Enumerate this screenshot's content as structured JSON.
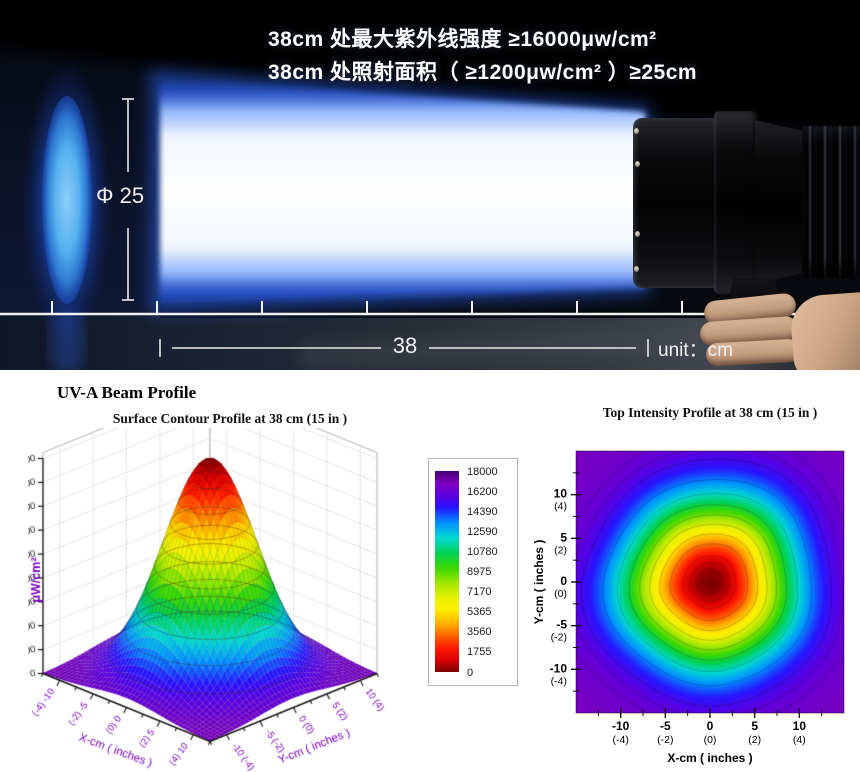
{
  "photo": {
    "spec_line1": "38cm 处最大紫外线强度 ≥16000μw/cm²",
    "spec_line2": "38cm 处照射面积（ ≥1200μw/cm² ）≥25cm",
    "diameter_label": "Φ 25",
    "distance_label": "38",
    "unit_label": "unit：cm",
    "colors": {
      "beam_core": "#ffffff",
      "beam_fringe": "#2a5fe0",
      "spot_blue": "#56b0ef"
    }
  },
  "section_title": "UV-A Beam Profile",
  "chart_data": [
    {
      "type": "surface_3d",
      "title": "Surface Contour Profile at 38 cm (15 in )",
      "zlabel": "μW/cm²",
      "xlabel": "X-cm ( inches )",
      "ylabel": "Y-cm ( inches )",
      "zlim": [
        0,
        18000
      ],
      "z_ticks": [
        0,
        2000,
        4000,
        6000,
        8000,
        10000,
        12000,
        14000,
        16000,
        18000
      ],
      "x_tick_cm": [
        -10,
        -5,
        0,
        5,
        10
      ],
      "y_tick_cm": [
        -10,
        -5,
        0,
        5,
        10
      ],
      "x_tick_labels": [
        "(-4) -10",
        "(-2) -5",
        "(0) 0",
        "(2) 5",
        "(4) 10"
      ],
      "y_tick_labels": [
        "-10 (-4)",
        "-5 (-2)",
        "0 (0)",
        "5 (2)",
        "10 (4)"
      ],
      "range_cm": [
        -12.5,
        12.5
      ],
      "model": {
        "shape": "gaussian",
        "peak_uw_cm2": 18000,
        "sigma_cm": 5.0
      },
      "colorbar_levels": [
        18000,
        16200,
        14390,
        12590,
        10780,
        8975,
        7170,
        5365,
        3560,
        1755,
        0
      ],
      "colorbar_top_color": "#470070",
      "colormap": [
        {
          "t": 0.0,
          "c": "#7a00be"
        },
        {
          "t": 0.07,
          "c": "#5a00e0"
        },
        {
          "t": 0.13,
          "c": "#2814ff"
        },
        {
          "t": 0.21,
          "c": "#0090ff"
        },
        {
          "t": 0.29,
          "c": "#00d8d0"
        },
        {
          "t": 0.37,
          "c": "#00d055"
        },
        {
          "t": 0.45,
          "c": "#3cd800"
        },
        {
          "t": 0.53,
          "c": "#a0e600"
        },
        {
          "t": 0.61,
          "c": "#e8f000"
        },
        {
          "t": 0.67,
          "c": "#ffee00"
        },
        {
          "t": 0.75,
          "c": "#ffaa00"
        },
        {
          "t": 0.82,
          "c": "#ff5500"
        },
        {
          "t": 0.88,
          "c": "#ff1500"
        },
        {
          "t": 0.94,
          "c": "#d40000"
        },
        {
          "t": 1.0,
          "c": "#7d0000"
        }
      ]
    },
    {
      "type": "heatmap",
      "title": "Top Intensity Profile at 38 cm (15 in )",
      "xlabel": "X-cm ( inches )",
      "ylabel": "Y-cm ( inches )",
      "x_ticks_cm": [
        "-10",
        "-5",
        "0",
        "5",
        "10"
      ],
      "x_ticks_in": [
        "(-4)",
        "(-2)",
        "(0)",
        "(2)",
        "(4)"
      ],
      "y_ticks_cm": [
        "10",
        "5",
        "0",
        "-5",
        "-10"
      ],
      "y_ticks_in": [
        "(4)",
        "(2)",
        "(0)",
        "(-2)",
        "(-4)"
      ],
      "range_cm": [
        -15,
        15
      ],
      "model": {
        "shape": "gaussian",
        "peak_uw_cm2": 18000,
        "sigma_cm": 6.5
      }
    }
  ]
}
